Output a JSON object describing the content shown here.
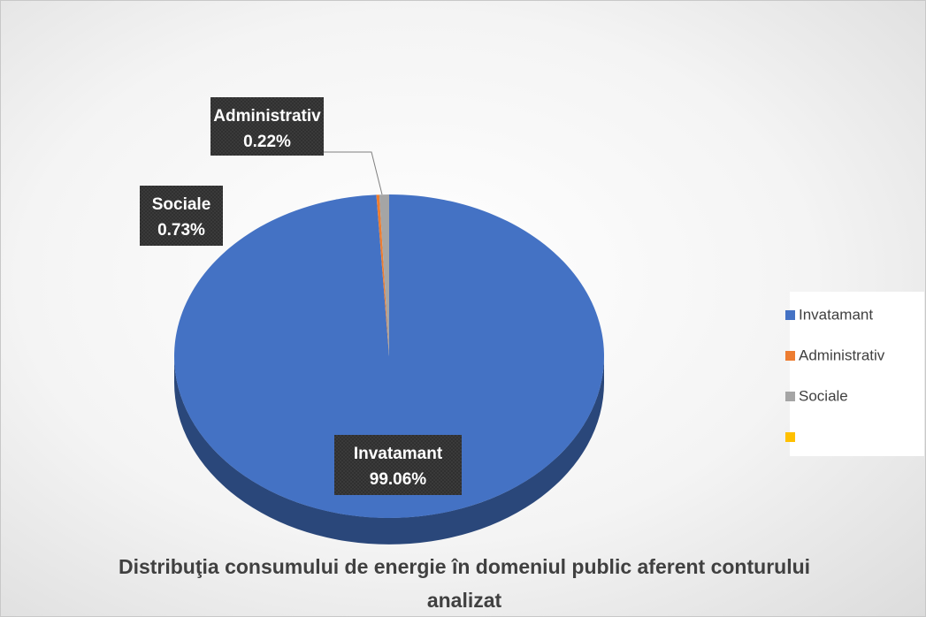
{
  "chart_data": {
    "type": "pie",
    "title": "Distribuţia consumului de energie în domeniul public aferent conturului analizat",
    "categories": [
      "Invatamant",
      "Administrativ",
      "Sociale",
      null
    ],
    "values": [
      99.06,
      0.22,
      0.73,
      0
    ],
    "value_labels": [
      "99.06%",
      "0.22%",
      "0.73%",
      null
    ],
    "colors": [
      "#4472c4",
      "#ed7d31",
      "#a5a5a5",
      "#ffc000"
    ],
    "legend": "right"
  }
}
